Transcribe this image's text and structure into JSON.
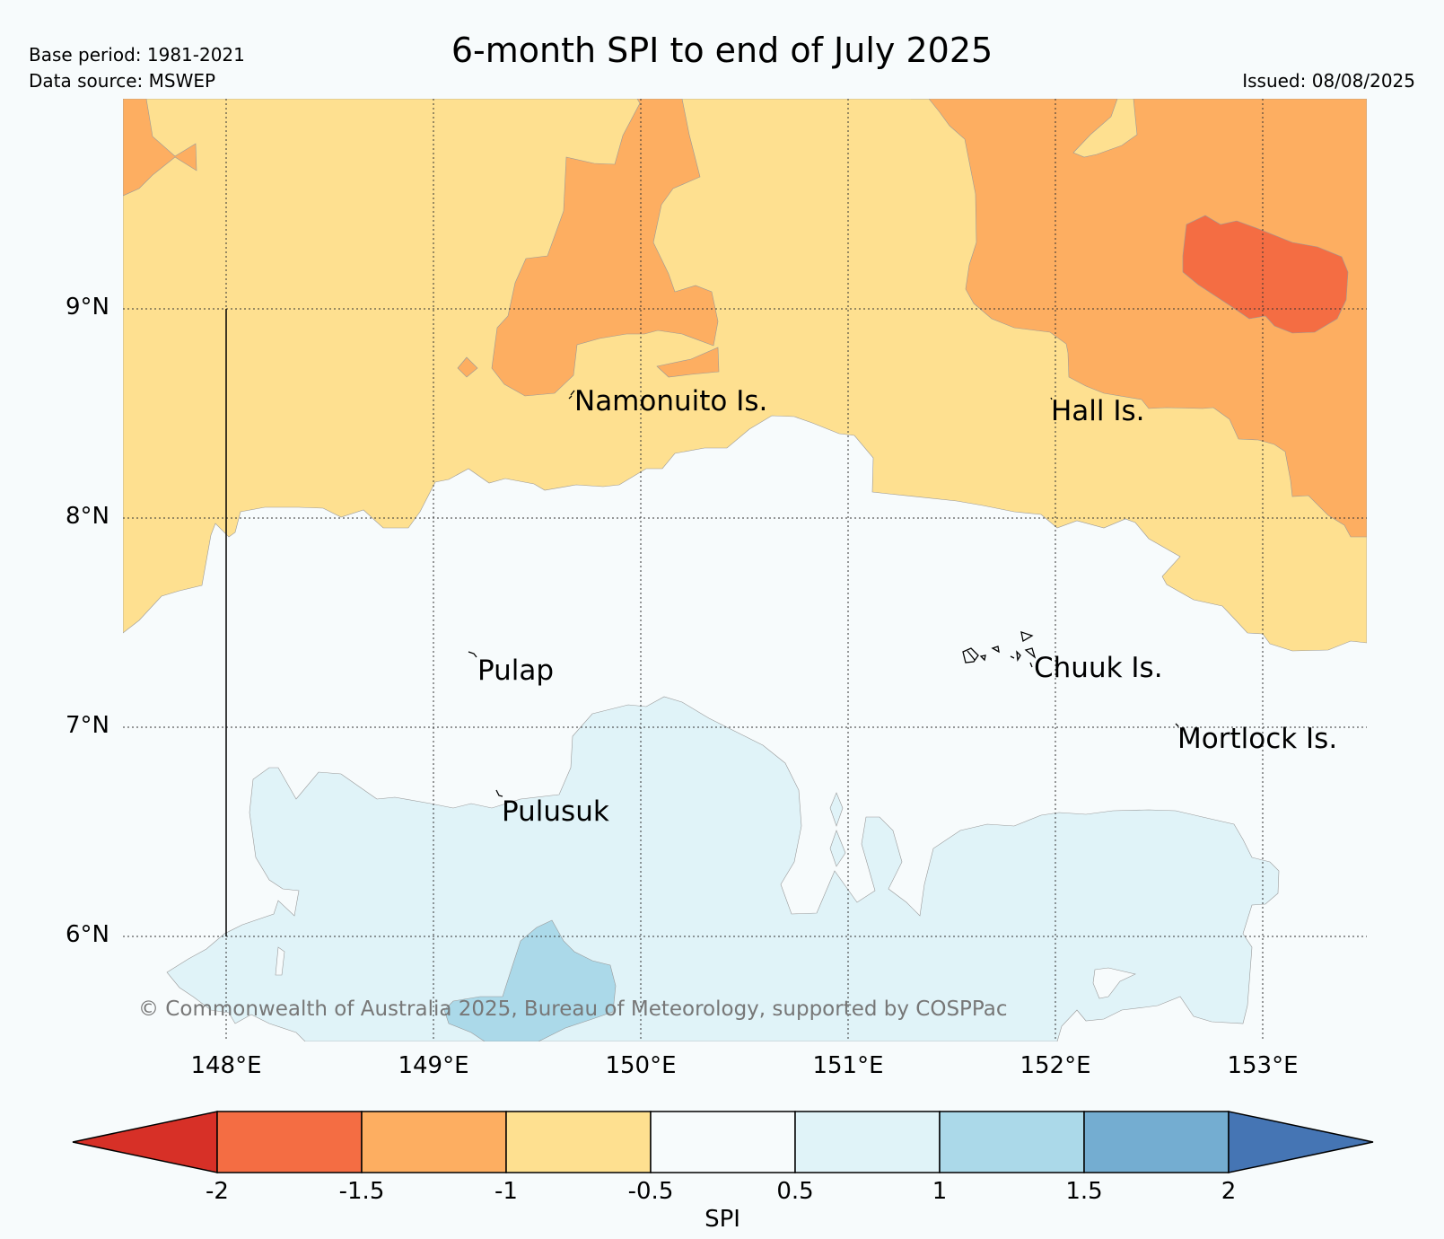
{
  "header": {
    "title": "6-month SPI to end of July 2025",
    "base_period": "Base period: 1981-2021",
    "data_source": "Data source: MSWEP",
    "issued": "Issued: 08/08/2025"
  },
  "map": {
    "lat_labels": [
      "9°N",
      "8°N",
      "7°N",
      "6°N"
    ],
    "lon_labels": [
      "148°E",
      "149°E",
      "150°E",
      "151°E",
      "152°E",
      "153°E"
    ],
    "place_labels": {
      "namonuito": "Namonuito Is.",
      "hall": "Hall Is.",
      "pulap": "Pulap",
      "chuuk": "Chuuk Is.",
      "mortlock": "Mortlock Is.",
      "pulusuk": "Pulusuk"
    },
    "copyright": "© Commonwealth of Australia 2025, Bureau of Meteorology, supported by COSPPac",
    "extent": {
      "lon": [
        147.5,
        153.5
      ],
      "lat": [
        5.5,
        10.0
      ]
    },
    "gridlines": true
  },
  "colorbar": {
    "label": "SPI",
    "ticks": [
      "-2",
      "-1.5",
      "-1",
      "-0.5",
      "0.5",
      "1",
      "1.5",
      "2"
    ],
    "colors": [
      "#d73027",
      "#f46d43",
      "#fdae61",
      "#fee090",
      "#f7fbfc",
      "#e0f3f8",
      "#abd9e9",
      "#74add1",
      "#4575b4"
    ],
    "extend": "both"
  }
}
